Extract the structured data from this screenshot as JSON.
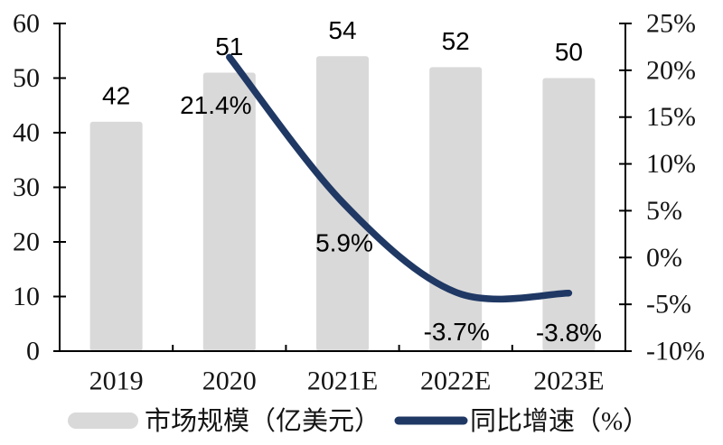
{
  "chart_data": {
    "type": "bar+line",
    "categories": [
      "2019",
      "2020",
      "2021E",
      "2022E",
      "2023E"
    ],
    "series": [
      {
        "name": "市场规模（亿美元）",
        "type": "bar",
        "axis": "left",
        "values": [
          42,
          51,
          54,
          52,
          50
        ],
        "data_labels": [
          "42",
          "51",
          "54",
          "52",
          "50"
        ],
        "color": "#d9d9d9"
      },
      {
        "name": "同比增速（%）",
        "type": "line",
        "axis": "right",
        "values": [
          null,
          21.4,
          5.9,
          -3.7,
          -3.8
        ],
        "data_labels": [
          "",
          "21.4%",
          "5.9%",
          "-3.7%",
          "-3.8%"
        ],
        "color": "#1f3864",
        "smooth": true,
        "label_offsets": [
          [
            0,
            0
          ],
          [
            -15,
            53
          ],
          [
            2,
            45
          ],
          [
            1,
            44
          ],
          [
            0,
            44
          ]
        ]
      }
    ],
    "left_axis": {
      "min": 0,
      "max": 60,
      "step": 10,
      "tick_labels": [
        "0",
        "10",
        "20",
        "30",
        "40",
        "50",
        "60"
      ]
    },
    "right_axis": {
      "min": -10,
      "max": 25,
      "step": 5,
      "tick_labels": [
        "-10%",
        "-5%",
        "0%",
        "5%",
        "10%",
        "15%",
        "20%",
        "25%"
      ]
    },
    "grid": "off",
    "legend": {
      "position": "bottom",
      "items": [
        {
          "label": "市场规模（亿美元）",
          "marker": "bar-swatch"
        },
        {
          "label": "同比增速（%）",
          "marker": "line-swatch"
        }
      ]
    },
    "colors": {
      "background": "#ffffff",
      "bar_fill": "#d9d9d9",
      "line_stroke": "#1f3864",
      "axis_line": "#000000",
      "axis_text": "#141414",
      "data_label_text": "#000000"
    }
  }
}
